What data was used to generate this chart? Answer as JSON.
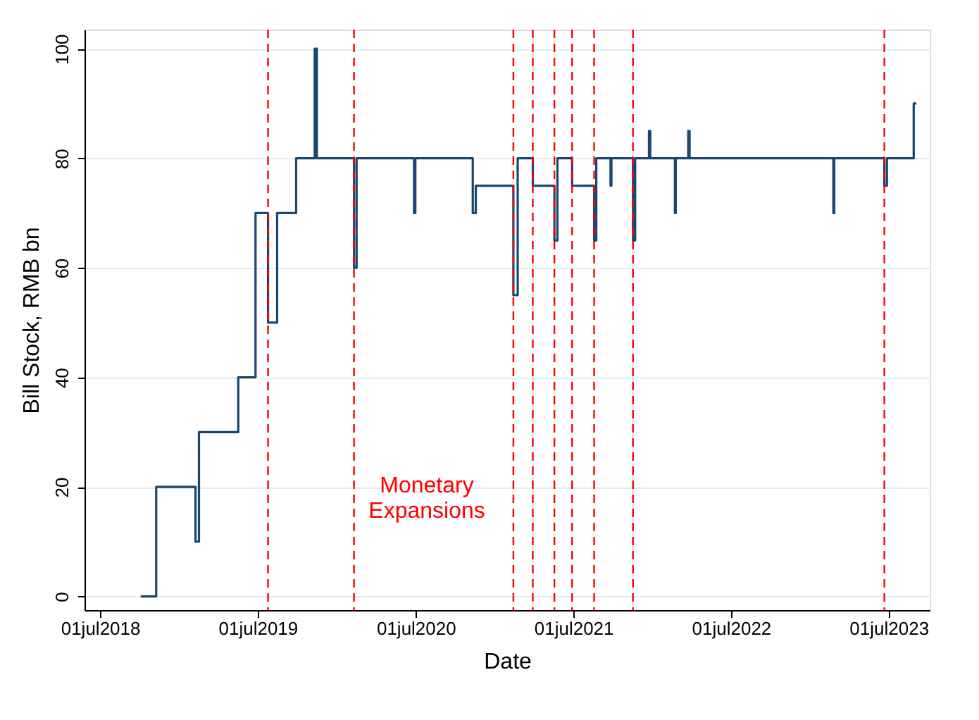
{
  "chart_data": {
    "type": "step",
    "xlabel": "Date",
    "ylabel": "Bill Stock, RMB bn",
    "x": [
      "2018-10-03",
      "2018-11-08",
      "2019-02-07",
      "2019-02-15",
      "2019-05-17",
      "2019-06-26",
      "2019-07-25",
      "2019-08-15",
      "2019-09-28",
      "2019-11-10",
      "2019-11-15",
      "2020-02-09",
      "2020-02-15",
      "2020-06-27",
      "2020-06-30",
      "2020-11-10",
      "2020-11-17",
      "2021-02-12",
      "2021-02-22",
      "2021-03-29",
      "2021-05-18",
      "2021-05-25",
      "2021-06-28",
      "2021-08-18",
      "2021-08-23",
      "2021-09-25",
      "2021-09-27",
      "2021-11-16",
      "2021-11-21",
      "2021-12-23",
      "2021-12-26",
      "2022-02-21",
      "2022-02-23",
      "2022-03-24",
      "2022-03-27",
      "2023-02-23",
      "2023-02-25",
      "2023-06-21",
      "2023-06-27",
      "2023-08-28",
      "2023-09-03"
    ],
    "series": [
      {
        "color": "#1a476f",
        "values": [
          0,
          20,
          10,
          30,
          40,
          70,
          50,
          70,
          80,
          100,
          80,
          60,
          80,
          70,
          80,
          70,
          75,
          55,
          80,
          75,
          65,
          80,
          75,
          65,
          80,
          75,
          80,
          65,
          80,
          85,
          80,
          70,
          80,
          85,
          80,
          70,
          80,
          75,
          80,
          90,
          90
        ]
      }
    ],
    "xlim": [
      "2018-05-26",
      "2023-10-04"
    ],
    "xticks": [
      {
        "value": "2018-07-01",
        "label": "01jul2018"
      },
      {
        "value": "2019-07-01",
        "label": "01jul2019"
      },
      {
        "value": "2020-07-01",
        "label": "01jul2020"
      },
      {
        "value": "2021-07-01",
        "label": "01jul2021"
      },
      {
        "value": "2022-07-01",
        "label": "01jul2022"
      },
      {
        "value": "2023-07-01",
        "label": "01jul2023"
      }
    ],
    "ylim": [
      -2.5,
      103.5
    ],
    "yticks": [
      0,
      20,
      40,
      60,
      80,
      100
    ],
    "grid": "y",
    "line_style": "solid",
    "marker": "none",
    "ref_lines": [
      {
        "axis": "x",
        "value": "2019-07-25",
        "color": "#ff0000",
        "line_style": "dashed"
      },
      {
        "axis": "x",
        "value": "2020-02-09",
        "color": "#ff0000",
        "line_style": "dashed"
      },
      {
        "axis": "x",
        "value": "2021-02-12",
        "color": "#ff0000",
        "line_style": "dashed"
      },
      {
        "axis": "x",
        "value": "2021-03-29",
        "color": "#ff0000",
        "line_style": "dashed"
      },
      {
        "axis": "x",
        "value": "2021-05-18",
        "color": "#ff0000",
        "line_style": "dashed"
      },
      {
        "axis": "x",
        "value": "2021-06-28",
        "color": "#ff0000",
        "line_style": "dashed"
      },
      {
        "axis": "x",
        "value": "2021-08-18",
        "color": "#ff0000",
        "line_style": "dashed"
      },
      {
        "axis": "x",
        "value": "2021-11-16",
        "color": "#ff0000",
        "line_style": "dashed"
      },
      {
        "axis": "x",
        "value": "2023-06-21",
        "color": "#ff0000",
        "line_style": "dashed"
      }
    ],
    "annotations": [
      "Monetary\nExpansions"
    ]
  }
}
